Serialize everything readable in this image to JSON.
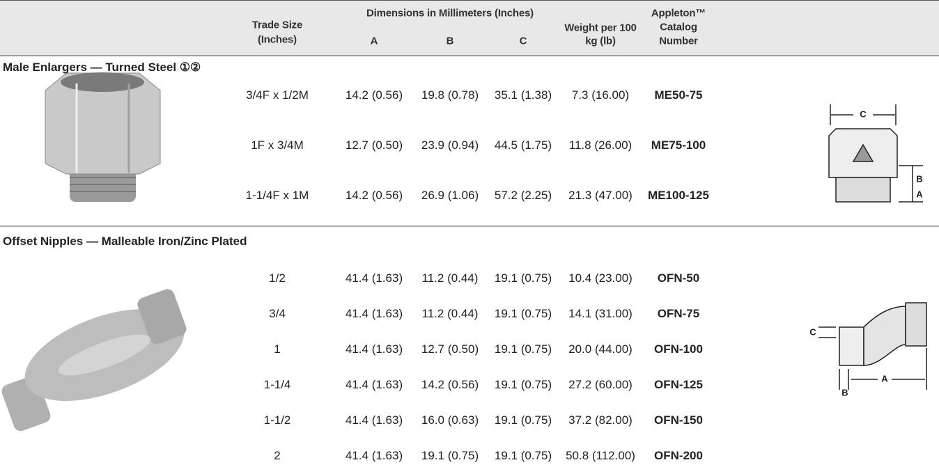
{
  "header": {
    "trade_size": [
      "Trade Size",
      "(Inches)"
    ],
    "dimensions": "Dimensions in Millimeters (Inches)",
    "dim_cols": [
      "A",
      "B",
      "C"
    ],
    "weight": [
      "Weight per 100",
      "kg (lb)"
    ],
    "catalog": [
      "Appleton™",
      "Catalog",
      "Number"
    ]
  },
  "sections": [
    {
      "title": "Male Enlargers — Turned Steel ①②",
      "rows": [
        [
          "3/4F x 1/2M",
          "14.2 (0.56)",
          "19.8 (0.78)",
          "35.1 (1.38)",
          "7.3 (16.00)",
          "ME50-75"
        ],
        [
          "1F x 3/4M",
          "12.7 (0.50)",
          "23.9 (0.94)",
          "44.5 (1.75)",
          "11.8 (26.00)",
          "ME75-100"
        ],
        [
          "1-1/4F x 1M",
          "14.2 (0.56)",
          "26.9 (1.06)",
          "57.2 (2.25)",
          "21.3 (47.00)",
          "ME100-125"
        ]
      ],
      "diagram_labels": [
        "C",
        "B",
        "A"
      ]
    },
    {
      "title": "Offset Nipples — Malleable Iron/Zinc Plated",
      "rows": [
        [
          "1/2",
          "41.4 (1.63)",
          "11.2 (0.44)",
          "19.1 (0.75)",
          "10.4 (23.00)",
          "OFN-50"
        ],
        [
          "3/4",
          "41.4 (1.63)",
          "11.2 (0.44)",
          "19.1 (0.75)",
          "14.1 (31.00)",
          "OFN-75"
        ],
        [
          "1",
          "41.4 (1.63)",
          "12.7 (0.50)",
          "19.1 (0.75)",
          "20.0 (44.00)",
          "OFN-100"
        ],
        [
          "1-1/4",
          "41.4 (1.63)",
          "14.2 (0.56)",
          "19.1 (0.75)",
          "27.2 (60.00)",
          "OFN-125"
        ],
        [
          "1-1/2",
          "41.4 (1.63)",
          "16.0 (0.63)",
          "19.1 (0.75)",
          "37.2 (82.00)",
          "OFN-150"
        ],
        [
          "2",
          "41.4 (1.63)",
          "19.1 (0.75)",
          "19.1 (0.75)",
          "50.8 (112.00)",
          "OFN-200"
        ]
      ],
      "diagram_labels": [
        "C",
        "B",
        "A"
      ]
    }
  ]
}
